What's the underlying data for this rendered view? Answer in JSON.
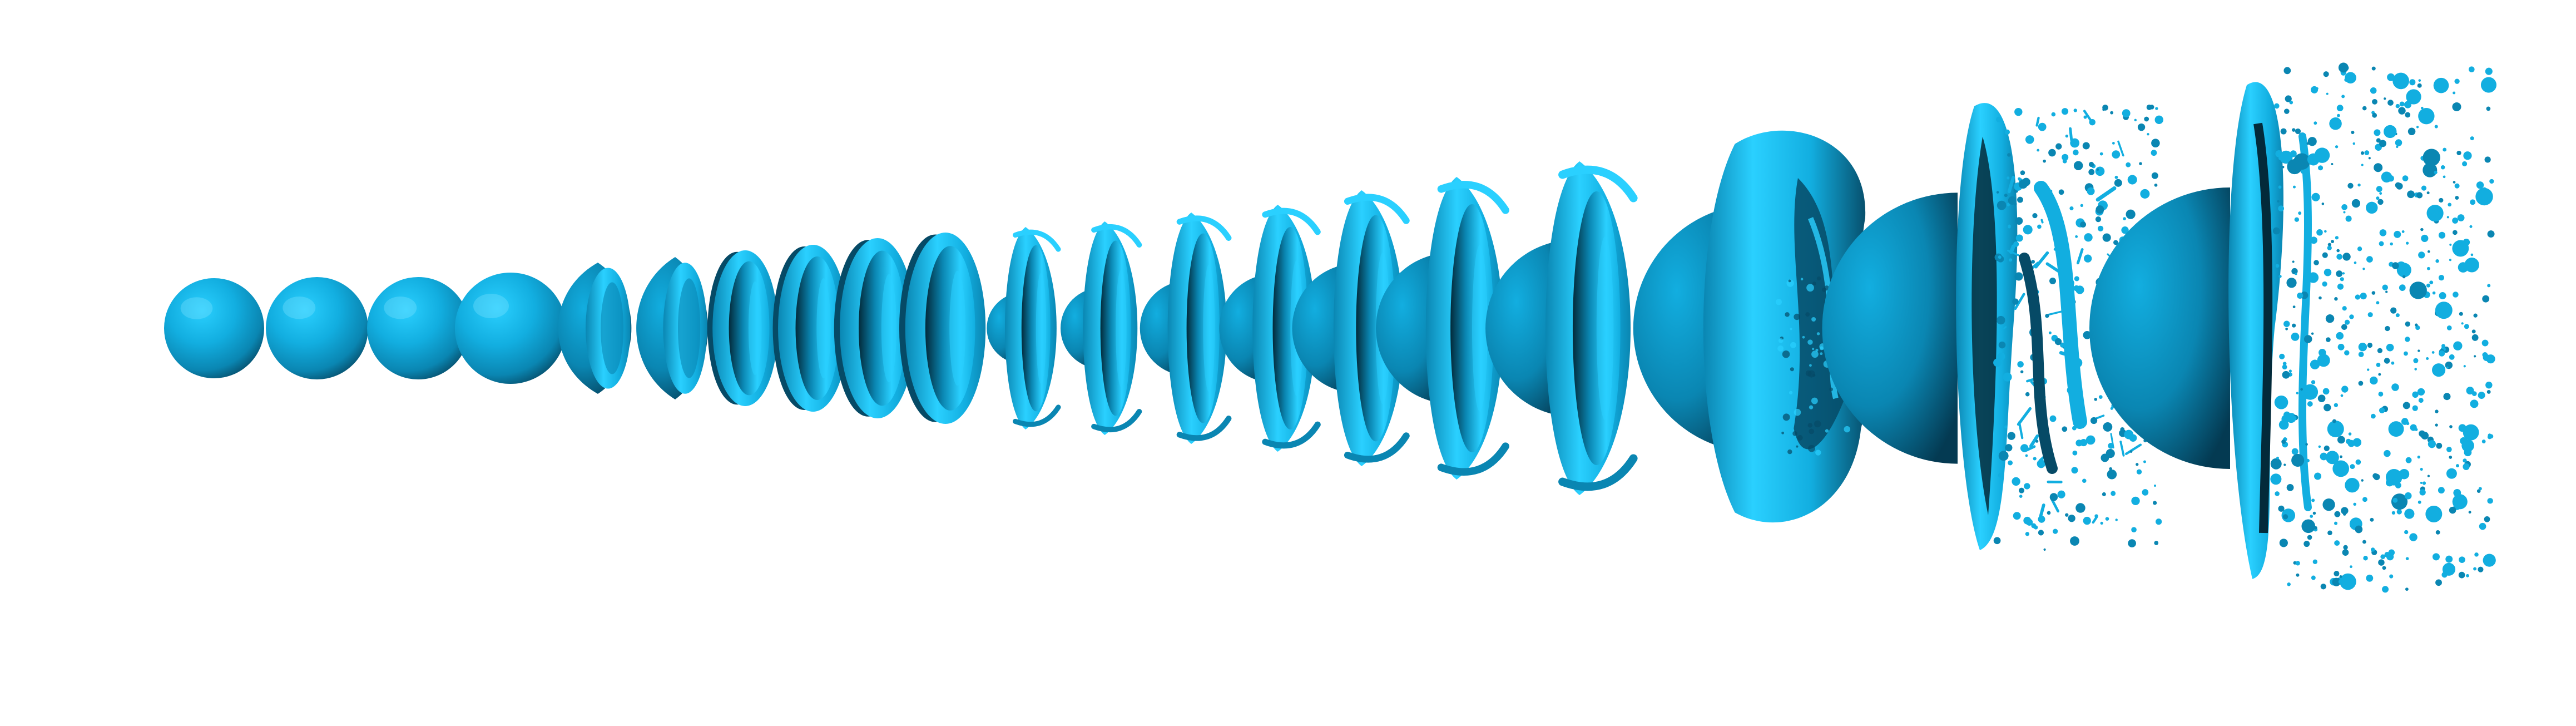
{
  "figure": {
    "background": "#ffffff",
    "colors": {
      "highlight": "#7fe3ff",
      "light": "#2ad0ff",
      "base": "#12aee0",
      "mid": "#0a86b2",
      "dark": "#064a66",
      "deep": "#032a3a"
    },
    "sequence": [
      {
        "stage": 1,
        "form": "sphere"
      },
      {
        "stage": 2,
        "form": "sphere"
      },
      {
        "stage": 3,
        "form": "sphere"
      },
      {
        "stage": 4,
        "form": "sphere"
      },
      {
        "stage": 5,
        "form": "lens"
      },
      {
        "stage": 6,
        "form": "lens"
      },
      {
        "stage": 7,
        "form": "disc"
      },
      {
        "stage": 8,
        "form": "disc"
      },
      {
        "stage": 9,
        "form": "disc"
      },
      {
        "stage": 10,
        "form": "disc"
      },
      {
        "stage": 11,
        "form": "bowl"
      },
      {
        "stage": 12,
        "form": "bowl"
      },
      {
        "stage": 13,
        "form": "bowl"
      },
      {
        "stage": 14,
        "form": "bowl"
      },
      {
        "stage": 15,
        "form": "bowl"
      },
      {
        "stage": 16,
        "form": "bowl"
      },
      {
        "stage": 17,
        "form": "bowl"
      },
      {
        "stage": 18,
        "form": "bag"
      },
      {
        "stage": 19,
        "form": "fragmenting-bag"
      },
      {
        "stage": 20,
        "form": "fragmented-spray"
      }
    ]
  }
}
